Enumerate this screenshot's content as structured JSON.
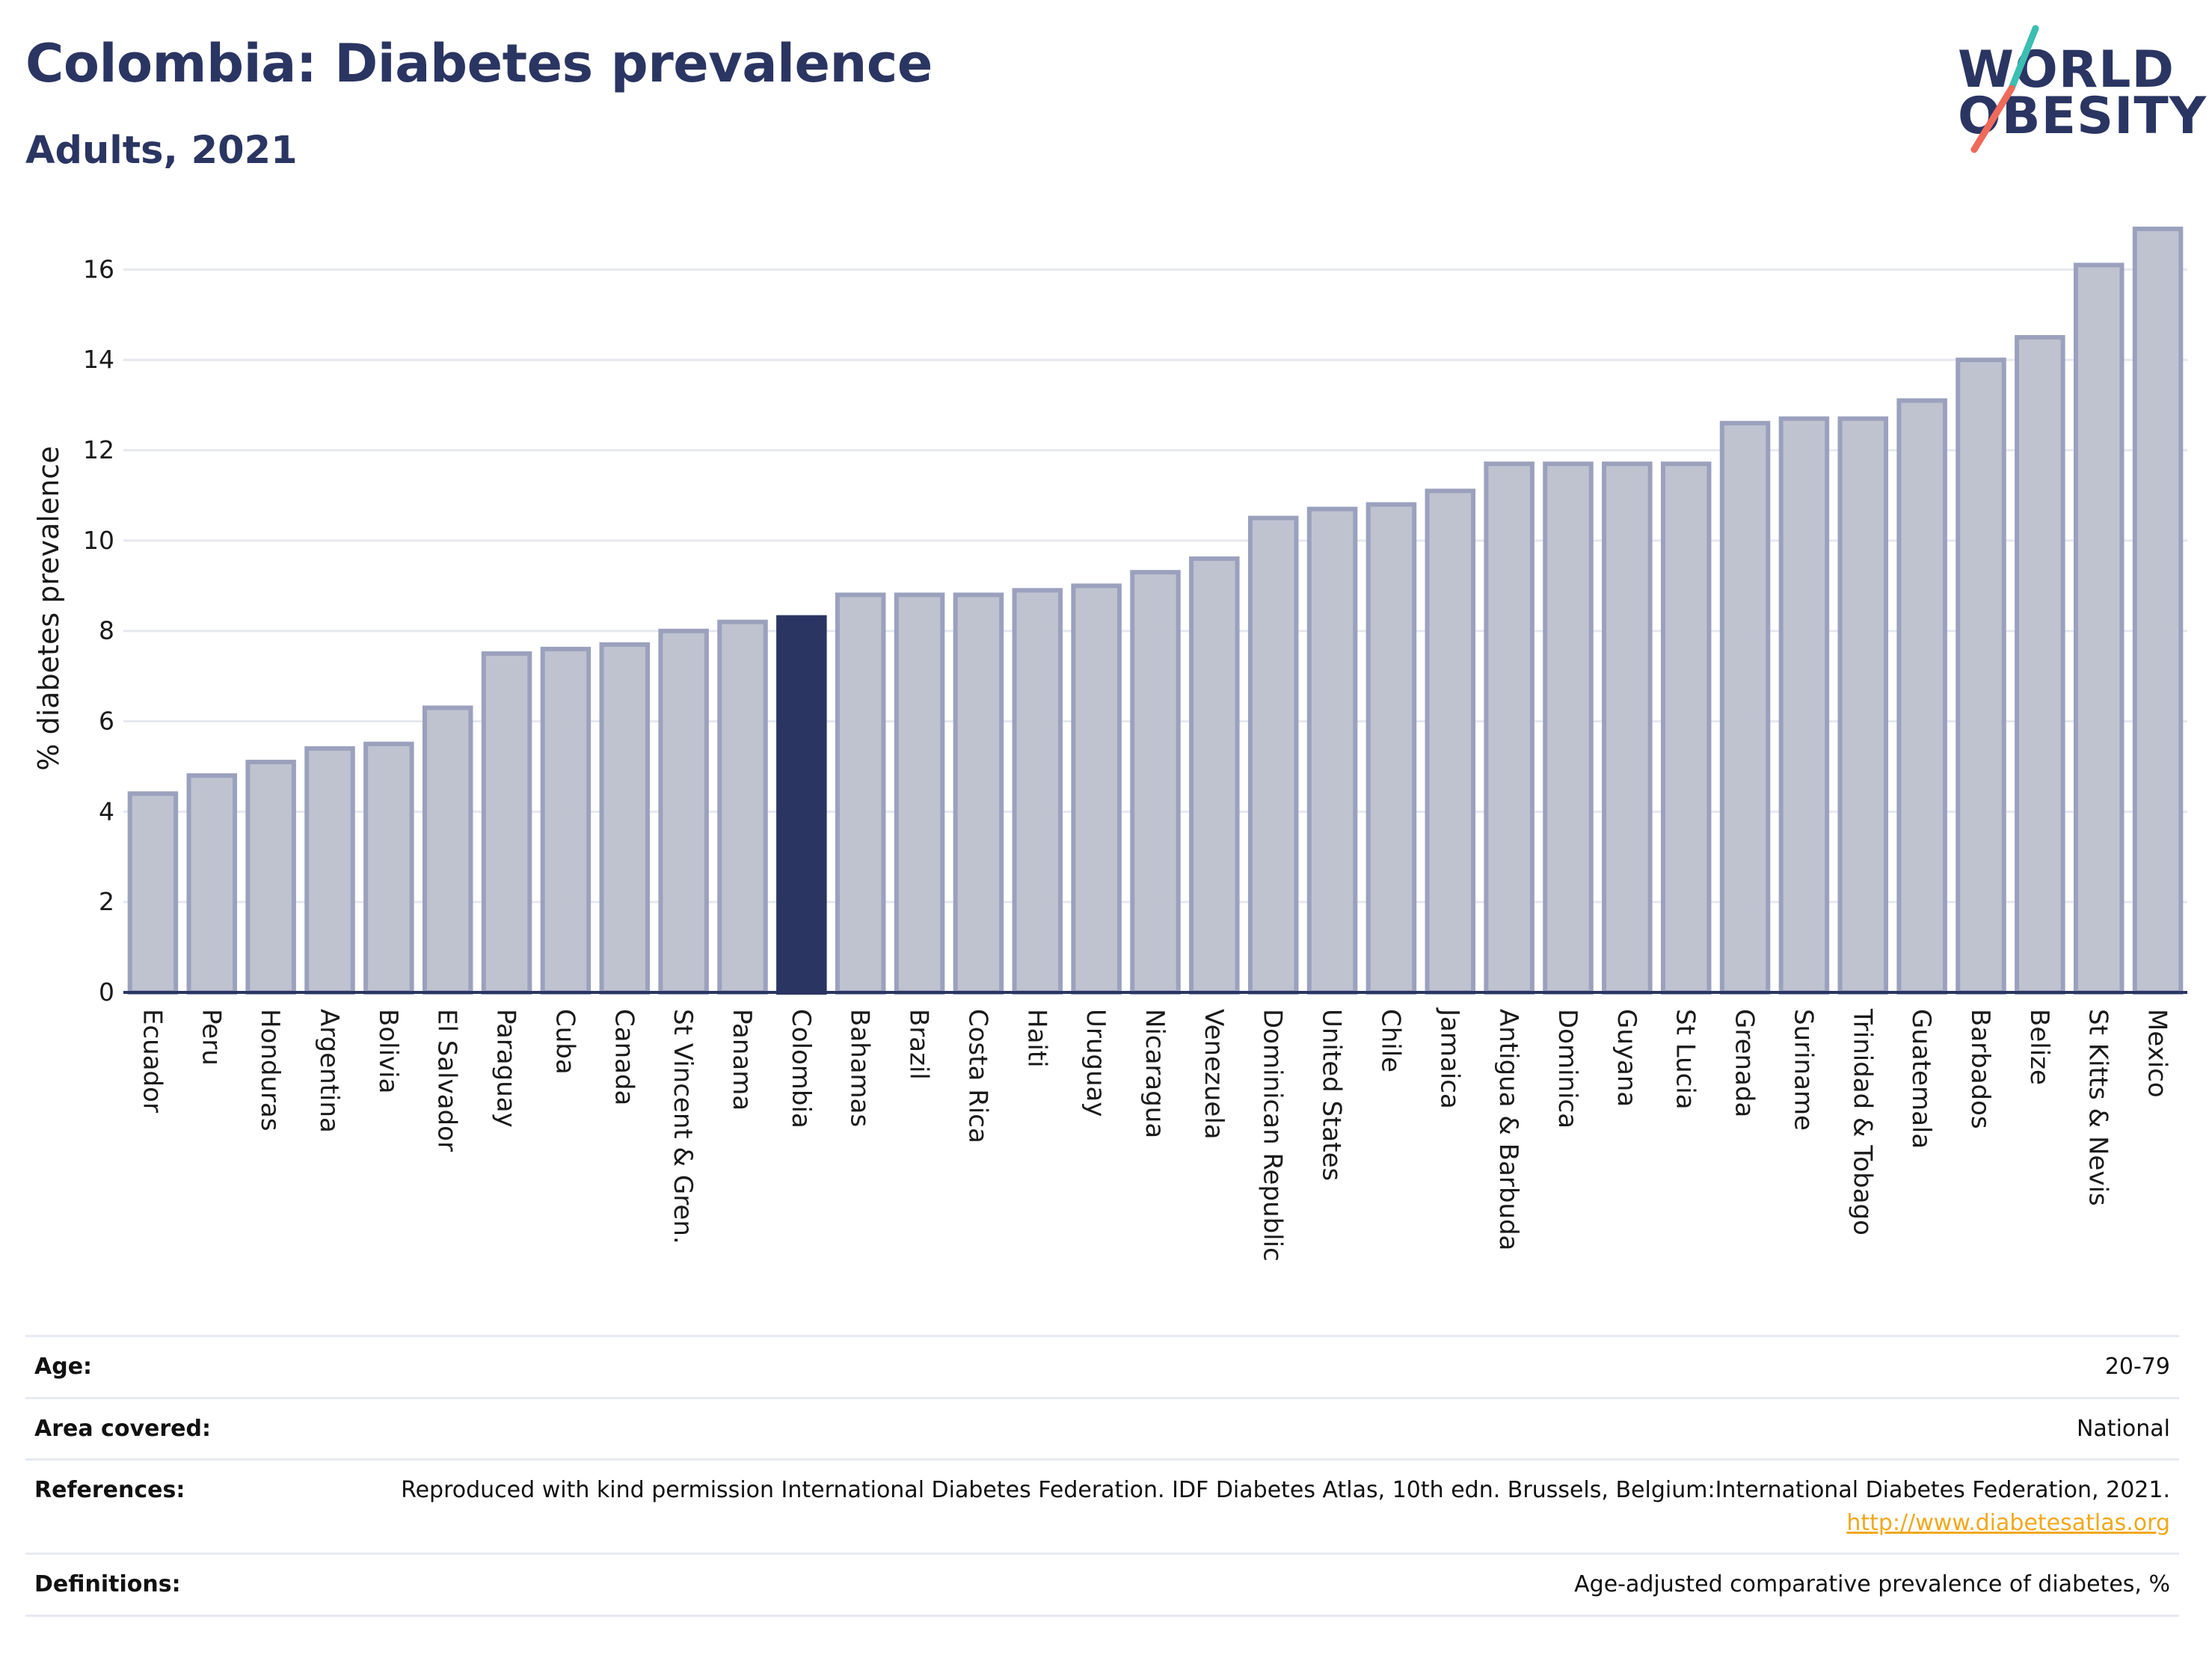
{
  "header": {
    "title": "Colombia: Diabetes prevalence",
    "subtitle": "Adults, 2021"
  },
  "logo": {
    "line1": "WORLD",
    "line2": "OBESITY",
    "colors": {
      "text": "#2b3562",
      "slash_top": "#3bbfb2",
      "slash_bottom": "#ef6a5b"
    }
  },
  "chart_data": {
    "type": "bar",
    "ylabel": "% diabetes prevalence",
    "xlabel": "",
    "ylim": [
      0,
      17
    ],
    "yticks": [
      0,
      2,
      4,
      6,
      8,
      10,
      12,
      14,
      16
    ],
    "grid": true,
    "highlight": "Colombia",
    "colors": {
      "highlight": "#2b3562",
      "bar": "#bfc3d0",
      "bar_edge": "#9ba1bd",
      "grid": "#e6e8ef",
      "axis": "#2b3562"
    },
    "categories": [
      "Ecuador",
      "Peru",
      "Honduras",
      "Argentina",
      "Bolivia",
      "El Salvador",
      "Paraguay",
      "Cuba",
      "Canada",
      "St Vincent & Gren.",
      "Panama",
      "Colombia",
      "Bahamas",
      "Brazil",
      "Costa Rica",
      "Haiti",
      "Uruguay",
      "Nicaragua",
      "Venezuela",
      "Dominican Republic",
      "United States",
      "Chile",
      "Jamaica",
      "Antigua & Barbuda",
      "Dominica",
      "Guyana",
      "St Lucia",
      "Grenada",
      "Suriname",
      "Trinidad & Tobago",
      "Guatemala",
      "Barbados",
      "Belize",
      "St Kitts & Nevis",
      "Mexico"
    ],
    "values": [
      4.4,
      4.8,
      5.1,
      5.4,
      5.5,
      6.3,
      7.5,
      7.6,
      7.7,
      8.0,
      8.2,
      8.3,
      8.8,
      8.8,
      8.8,
      8.9,
      9.0,
      9.3,
      9.6,
      10.5,
      10.7,
      10.8,
      11.1,
      11.7,
      11.7,
      11.7,
      11.7,
      12.6,
      12.7,
      12.7,
      13.1,
      14.0,
      14.5,
      16.1,
      16.9
    ]
  },
  "info": [
    {
      "label": "Age:",
      "value": "20-79"
    },
    {
      "label": "Area covered:",
      "value": "National"
    },
    {
      "label": "References:",
      "value": "Reproduced with kind permission International Diabetes Federation.  IDF Diabetes Atlas, 10th edn. Brussels, Belgium:International Diabetes Federation, 2021.",
      "link": "http://www.diabetesatlas.org"
    },
    {
      "label": "Definitions:",
      "value": "Age-adjusted comparative prevalence of diabetes, %"
    }
  ]
}
